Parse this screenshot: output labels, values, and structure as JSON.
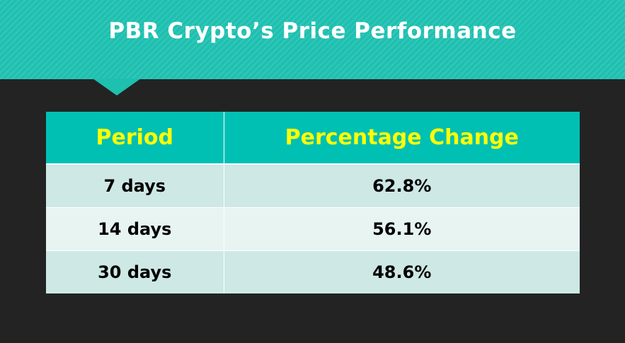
{
  "title": "PBR Crypto’s Price Performance",
  "table": {
    "headers": [
      "Period",
      "Percentage Change"
    ],
    "rows": [
      [
        "7 days",
        "62.8%"
      ],
      [
        "14 days",
        "56.1%"
      ],
      [
        "30 days",
        "48.6%"
      ]
    ]
  },
  "colors": {
    "banner": "#1ec0b0",
    "header_bg": "#00c0b4",
    "header_text": "#ffff00",
    "row_odd": "#cde8e5",
    "row_even": "#e8f4f2",
    "background": "#232323"
  }
}
